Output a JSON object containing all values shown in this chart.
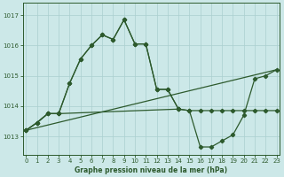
{
  "title": "Graphe pression niveau de la mer (hPa)",
  "bg_color": "#cce8e8",
  "line_color": "#2d5a2d",
  "grid_color": "#aacfcf",
  "x_ticks": [
    0,
    1,
    2,
    3,
    4,
    5,
    6,
    7,
    8,
    9,
    10,
    11,
    12,
    13,
    14,
    15,
    16,
    17,
    18,
    19,
    20,
    21,
    22,
    23
  ],
  "y_ticks": [
    1013,
    1014,
    1015,
    1016,
    1017
  ],
  "ylim": [
    1012.4,
    1017.4
  ],
  "xlim": [
    -0.3,
    23.3
  ],
  "series_upper": {
    "x": [
      0,
      1,
      2,
      3,
      4,
      5,
      6,
      7,
      8,
      9,
      10,
      11,
      12,
      13,
      14
    ],
    "y": [
      1013.2,
      1013.45,
      1013.75,
      1013.75,
      1014.75,
      1015.55,
      1016.0,
      1016.35,
      1016.2,
      1016.85,
      1016.05,
      1016.05,
      1014.55,
      1014.55,
      1013.9
    ]
  },
  "series_main": {
    "x": [
      0,
      1,
      2,
      3,
      4,
      5,
      6,
      7,
      8,
      9,
      10,
      11,
      12,
      13,
      14,
      15,
      16,
      17,
      18,
      19,
      20,
      21,
      22,
      23
    ],
    "y": [
      1013.2,
      1013.45,
      1013.75,
      1013.75,
      1014.75,
      1015.55,
      1016.0,
      1016.35,
      1016.2,
      1016.85,
      1016.05,
      1016.05,
      1014.55,
      1014.55,
      1013.9,
      1013.85,
      1012.65,
      1012.65,
      1012.85,
      1013.05,
      1013.7,
      1014.9,
      1015.0,
      1015.2
    ]
  },
  "series_flat_upper": {
    "x": [
      0,
      1,
      2,
      3,
      14,
      15,
      16,
      17,
      18,
      19,
      20,
      21,
      22,
      23
    ],
    "y": [
      1013.2,
      1013.45,
      1013.75,
      1013.75,
      1013.9,
      1013.85,
      1013.85,
      1013.85,
      1013.85,
      1013.85,
      1013.85,
      1013.85,
      1013.85,
      1013.85
    ]
  },
  "series_ref": {
    "x": [
      0,
      23
    ],
    "y": [
      1013.2,
      1015.2
    ]
  }
}
